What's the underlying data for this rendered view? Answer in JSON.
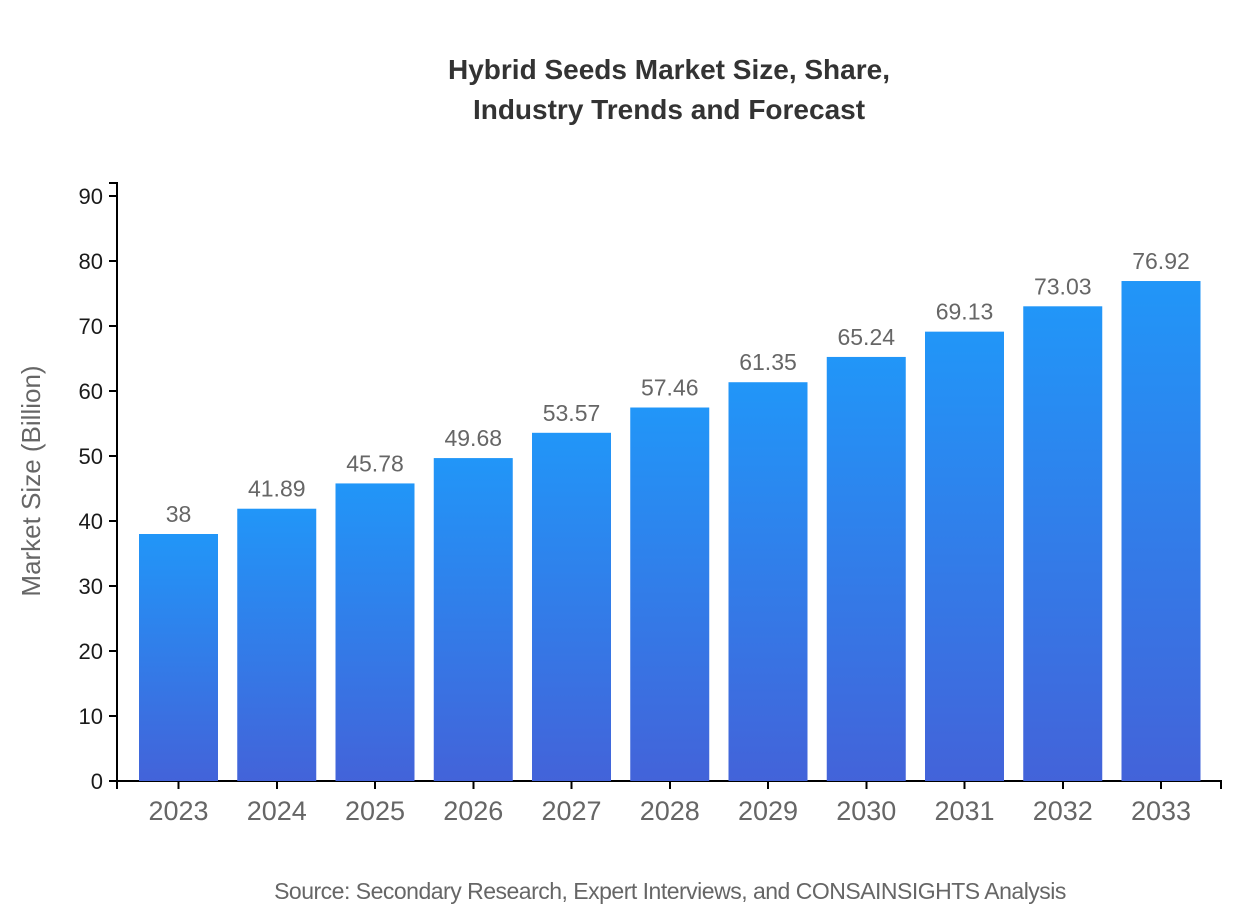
{
  "title": {
    "line1": "Hybrid Seeds Market Size, Share,",
    "line2": "Industry Trends and Forecast"
  },
  "source": "Source: Secondary Research, Expert Interviews, and CONSAINSIGHTS Analysis",
  "chart_data": {
    "type": "bar",
    "title": "Hybrid Seeds Market Size, Share, Industry Trends and Forecast",
    "categories": [
      "2023",
      "2024",
      "2025",
      "2026",
      "2027",
      "2028",
      "2029",
      "2030",
      "2031",
      "2032",
      "2033"
    ],
    "values": [
      38,
      41.89,
      45.78,
      49.68,
      53.57,
      57.46,
      61.35,
      65.24,
      69.13,
      73.03,
      76.92
    ],
    "value_labels": [
      "38",
      "41.89",
      "45.78",
      "49.68",
      "53.57",
      "57.46",
      "61.35",
      "65.24",
      "69.13",
      "73.03",
      "76.92"
    ],
    "xlabel": "",
    "ylabel": "Market Size (Billion)",
    "ylim": [
      0,
      90
    ],
    "ytick_step": 10,
    "grid": false,
    "legend": "none",
    "colors": {
      "bar_gradient_top": "#2196f8",
      "bar_gradient_bottom": "#4363d9",
      "axis": "#000000",
      "y_tick_label": "#1a1a1a",
      "category_label": "#666666",
      "value_label": "#666666"
    }
  }
}
